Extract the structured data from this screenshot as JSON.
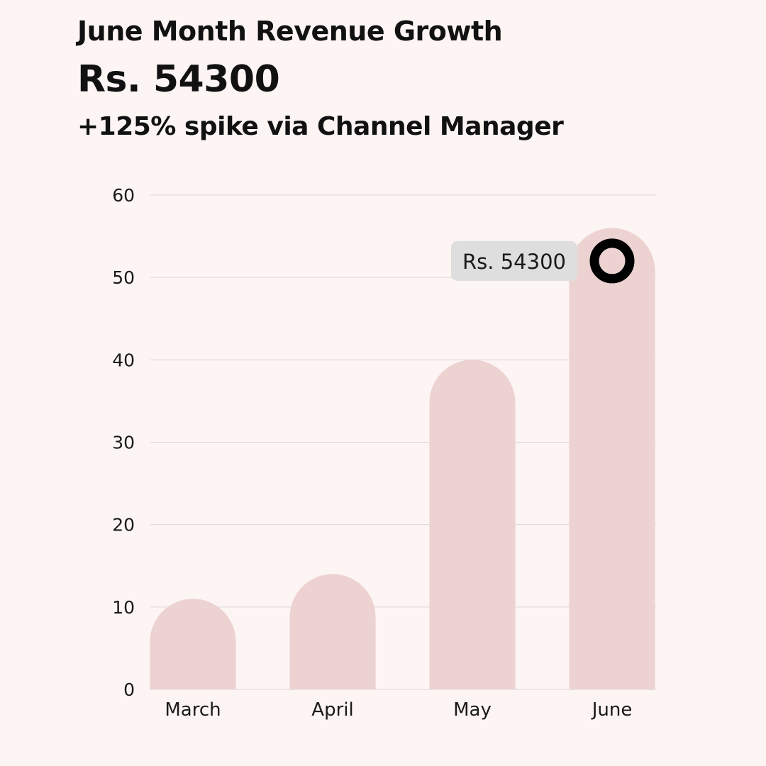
{
  "header": {
    "title": "June Month Revenue Growth",
    "headline": "Rs. 54300",
    "subtitle": "+125% spike via Channel Manager"
  },
  "colors": {
    "background": "#fdf4f4",
    "bar": "#ecd2d0",
    "grid": "#dcd8d8",
    "marker": "#000000",
    "tooltip": "#dedede"
  },
  "chart_data": {
    "type": "bar",
    "categories": [
      "March",
      "April",
      "May",
      "June"
    ],
    "values": [
      11,
      14,
      40,
      56
    ],
    "ylim": [
      0,
      60
    ],
    "yticks": [
      0,
      10,
      20,
      30,
      40,
      50,
      60
    ],
    "grid": true,
    "highlight": {
      "category": "June",
      "value": 52,
      "label": "Rs. 54300"
    }
  }
}
